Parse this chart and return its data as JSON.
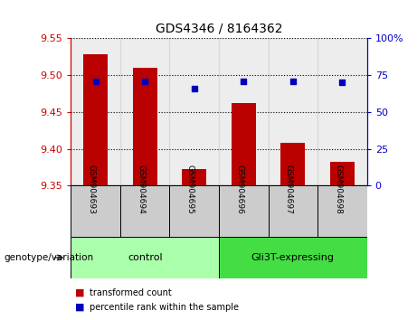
{
  "title": "GDS4346 / 8164362",
  "samples": [
    "GSM904693",
    "GSM904694",
    "GSM904695",
    "GSM904696",
    "GSM904697",
    "GSM904698"
  ],
  "red_values": [
    9.528,
    9.51,
    9.372,
    9.462,
    9.408,
    9.382
  ],
  "blue_values": [
    71,
    71,
    66,
    71,
    71,
    70
  ],
  "ylim_left": [
    9.35,
    9.55
  ],
  "ylim_right": [
    0,
    100
  ],
  "yticks_left": [
    9.35,
    9.4,
    9.45,
    9.5,
    9.55
  ],
  "yticks_right": [
    0,
    25,
    50,
    75,
    100
  ],
  "group_control": {
    "label": "control",
    "indices": [
      0,
      1,
      2
    ],
    "color": "#aaffaa"
  },
  "group_gli": {
    "label": "Gli3T-expressing",
    "indices": [
      3,
      4,
      5
    ],
    "color": "#44dd44"
  },
  "bar_color": "#BB0000",
  "dot_color": "#0000BB",
  "legend_red_label": "transformed count",
  "legend_blue_label": "percentile rank within the sample",
  "genotype_label": "genotype/variation",
  "left_axis_color": "#CC0000",
  "right_axis_color": "#0000CC",
  "col_bg_color": "#CCCCCC",
  "bar_width": 0.5,
  "fig_width": 4.61,
  "fig_height": 3.54,
  "dpi": 100
}
